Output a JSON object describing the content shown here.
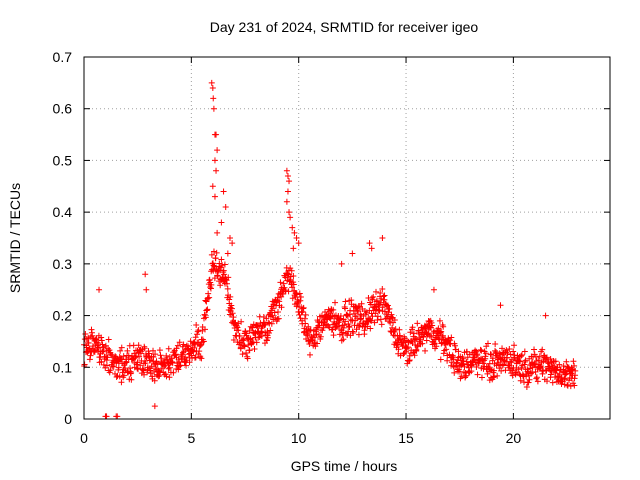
{
  "chart_data": {
    "type": "scatter",
    "title": "Day 231 of 2024, SRMTID for receiver igeo",
    "xlabel": "GPS time / hours",
    "ylabel": "SRMTID / TECUs",
    "xlim": [
      0,
      24.5
    ],
    "ylim": [
      0,
      0.7
    ],
    "xticks": [
      0,
      5,
      10,
      15,
      20
    ],
    "xtick_labels": [
      "0",
      "5",
      "10",
      "15",
      "20"
    ],
    "yticks": [
      0,
      0.1,
      0.2,
      0.3,
      0.4,
      0.5,
      0.6,
      0.7
    ],
    "ytick_labels": [
      "0",
      "0.1",
      "0.2",
      "0.3",
      "0.4",
      "0.5",
      "0.6",
      "0.7"
    ],
    "grid": true,
    "marker": "+",
    "color": "#ff0000",
    "trend": [
      {
        "x": 0.0,
        "y": 0.13
      },
      {
        "x": 0.5,
        "y": 0.15
      },
      {
        "x": 1.0,
        "y": 0.12
      },
      {
        "x": 1.5,
        "y": 0.11
      },
      {
        "x": 2.0,
        "y": 0.1
      },
      {
        "x": 2.5,
        "y": 0.12
      },
      {
        "x": 3.0,
        "y": 0.11
      },
      {
        "x": 3.5,
        "y": 0.1
      },
      {
        "x": 4.0,
        "y": 0.11
      },
      {
        "x": 4.5,
        "y": 0.12
      },
      {
        "x": 5.0,
        "y": 0.13
      },
      {
        "x": 5.5,
        "y": 0.15
      },
      {
        "x": 6.0,
        "y": 0.3
      },
      {
        "x": 6.5,
        "y": 0.28
      },
      {
        "x": 7.0,
        "y": 0.18
      },
      {
        "x": 7.5,
        "y": 0.14
      },
      {
        "x": 8.0,
        "y": 0.17
      },
      {
        "x": 8.5,
        "y": 0.18
      },
      {
        "x": 9.0,
        "y": 0.22
      },
      {
        "x": 9.5,
        "y": 0.28
      },
      {
        "x": 10.0,
        "y": 0.22
      },
      {
        "x": 10.5,
        "y": 0.15
      },
      {
        "x": 11.0,
        "y": 0.18
      },
      {
        "x": 11.5,
        "y": 0.2
      },
      {
        "x": 12.0,
        "y": 0.18
      },
      {
        "x": 12.5,
        "y": 0.2
      },
      {
        "x": 13.0,
        "y": 0.19
      },
      {
        "x": 13.5,
        "y": 0.21
      },
      {
        "x": 14.0,
        "y": 0.22
      },
      {
        "x": 14.5,
        "y": 0.16
      },
      {
        "x": 15.0,
        "y": 0.13
      },
      {
        "x": 15.5,
        "y": 0.15
      },
      {
        "x": 16.0,
        "y": 0.17
      },
      {
        "x": 16.5,
        "y": 0.16
      },
      {
        "x": 17.0,
        "y": 0.14
      },
      {
        "x": 17.5,
        "y": 0.1
      },
      {
        "x": 18.0,
        "y": 0.11
      },
      {
        "x": 18.5,
        "y": 0.12
      },
      {
        "x": 19.0,
        "y": 0.1
      },
      {
        "x": 19.5,
        "y": 0.12
      },
      {
        "x": 20.0,
        "y": 0.11
      },
      {
        "x": 20.5,
        "y": 0.1
      },
      {
        "x": 21.0,
        "y": 0.1
      },
      {
        "x": 21.5,
        "y": 0.11
      },
      {
        "x": 22.0,
        "y": 0.09
      },
      {
        "x": 22.5,
        "y": 0.08
      },
      {
        "x": 22.9,
        "y": 0.09
      }
    ],
    "spikes": [
      {
        "x": 0.7,
        "y": 0.25
      },
      {
        "x": 2.85,
        "y": 0.28
      },
      {
        "x": 2.9,
        "y": 0.25
      },
      {
        "x": 5.95,
        "y": 0.65
      },
      {
        "x": 6.0,
        "y": 0.64
      },
      {
        "x": 6.02,
        "y": 0.62
      },
      {
        "x": 6.05,
        "y": 0.6
      },
      {
        "x": 6.1,
        "y": 0.55
      },
      {
        "x": 6.15,
        "y": 0.55
      },
      {
        "x": 6.2,
        "y": 0.52
      },
      {
        "x": 6.1,
        "y": 0.5
      },
      {
        "x": 6.15,
        "y": 0.48
      },
      {
        "x": 6.0,
        "y": 0.45
      },
      {
        "x": 6.1,
        "y": 0.43
      },
      {
        "x": 6.5,
        "y": 0.44
      },
      {
        "x": 6.6,
        "y": 0.41
      },
      {
        "x": 6.4,
        "y": 0.38
      },
      {
        "x": 6.2,
        "y": 0.36
      },
      {
        "x": 6.8,
        "y": 0.35
      },
      {
        "x": 6.9,
        "y": 0.34
      },
      {
        "x": 6.7,
        "y": 0.32
      },
      {
        "x": 9.45,
        "y": 0.48
      },
      {
        "x": 9.5,
        "y": 0.47
      },
      {
        "x": 9.55,
        "y": 0.46
      },
      {
        "x": 9.5,
        "y": 0.44
      },
      {
        "x": 9.45,
        "y": 0.42
      },
      {
        "x": 9.55,
        "y": 0.4
      },
      {
        "x": 9.6,
        "y": 0.39
      },
      {
        "x": 9.7,
        "y": 0.37
      },
      {
        "x": 9.8,
        "y": 0.36
      },
      {
        "x": 9.9,
        "y": 0.35
      },
      {
        "x": 10.0,
        "y": 0.34
      },
      {
        "x": 9.75,
        "y": 0.33
      },
      {
        "x": 13.3,
        "y": 0.34
      },
      {
        "x": 13.4,
        "y": 0.33
      },
      {
        "x": 13.9,
        "y": 0.35
      },
      {
        "x": 12.5,
        "y": 0.32
      },
      {
        "x": 12.0,
        "y": 0.3
      },
      {
        "x": 16.3,
        "y": 0.25
      },
      {
        "x": 19.4,
        "y": 0.22
      },
      {
        "x": 21.5,
        "y": 0.2
      },
      {
        "x": 1.0,
        "y": 0.005
      },
      {
        "x": 1.05,
        "y": 0.005
      },
      {
        "x": 1.5,
        "y": 0.005
      },
      {
        "x": 1.55,
        "y": 0.005
      },
      {
        "x": 3.3,
        "y": 0.025
      }
    ],
    "point_count": 1400,
    "scatter_spread": 0.045
  }
}
